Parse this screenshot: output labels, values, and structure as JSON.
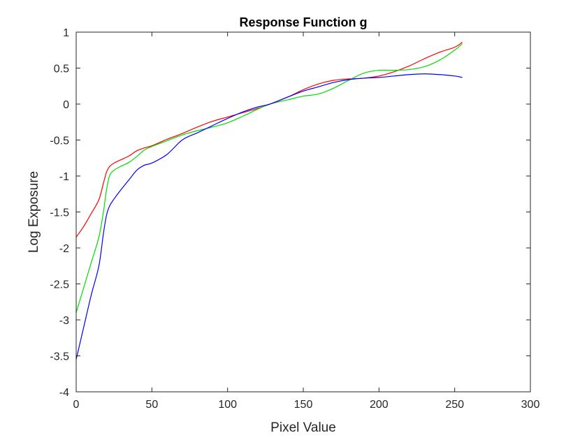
{
  "chart_data": {
    "type": "line",
    "title": "Response Function g",
    "xlabel": "Pixel Value",
    "ylabel": "Log Exposure",
    "xlim": [
      0,
      300
    ],
    "ylim": [
      -4,
      1
    ],
    "xticks": [
      0,
      50,
      100,
      150,
      200,
      250,
      300
    ],
    "yticks": [
      -4,
      -3.5,
      -3,
      -2.5,
      -2,
      -1.5,
      -1,
      -0.5,
      0,
      0.5,
      1
    ],
    "xtick_labels": [
      "0",
      "50",
      "100",
      "150",
      "200",
      "250",
      "300"
    ],
    "ytick_labels": [
      "-4",
      "-3.5",
      "-3",
      "-2.5",
      "-2",
      "-1.5",
      "-1",
      "-0.5",
      "0",
      "0.5",
      "1"
    ],
    "grid": false,
    "legend": "none",
    "series": [
      {
        "color": "#ff0000",
        "x": [
          0,
          5,
          10,
          15,
          18,
          20,
          22,
          25,
          30,
          35,
          40,
          45,
          50,
          60,
          70,
          80,
          90,
          100,
          110,
          120,
          128,
          140,
          150,
          160,
          170,
          180,
          190,
          200,
          210,
          220,
          230,
          240,
          250,
          255
        ],
        "y": [
          -1.85,
          -1.7,
          -1.52,
          -1.33,
          -1.1,
          -0.95,
          -0.87,
          -0.82,
          -0.77,
          -0.72,
          -0.65,
          -0.61,
          -0.58,
          -0.49,
          -0.41,
          -0.32,
          -0.24,
          -0.18,
          -0.12,
          -0.06,
          0.0,
          0.1,
          0.2,
          0.28,
          0.33,
          0.35,
          0.36,
          0.39,
          0.45,
          0.53,
          0.63,
          0.72,
          0.79,
          0.86
        ]
      },
      {
        "color": "#00dd00",
        "x": [
          0,
          5,
          10,
          15,
          18,
          20,
          22,
          25,
          30,
          35,
          40,
          45,
          50,
          60,
          70,
          80,
          90,
          100,
          110,
          120,
          128,
          140,
          150,
          160,
          170,
          180,
          190,
          200,
          210,
          220,
          230,
          240,
          250,
          255
        ],
        "y": [
          -2.9,
          -2.55,
          -2.2,
          -1.85,
          -1.5,
          -1.2,
          -1.0,
          -0.92,
          -0.86,
          -0.81,
          -0.73,
          -0.64,
          -0.59,
          -0.51,
          -0.43,
          -0.37,
          -0.32,
          -0.26,
          -0.17,
          -0.07,
          0.0,
          0.06,
          0.11,
          0.14,
          0.22,
          0.33,
          0.43,
          0.47,
          0.47,
          0.48,
          0.52,
          0.61,
          0.75,
          0.84
        ]
      },
      {
        "color": "#0000ff",
        "x": [
          0,
          5,
          10,
          15,
          18,
          20,
          22,
          25,
          30,
          35,
          40,
          45,
          50,
          60,
          70,
          80,
          90,
          100,
          110,
          120,
          128,
          140,
          150,
          160,
          170,
          180,
          190,
          200,
          210,
          220,
          230,
          240,
          250,
          255
        ],
        "y": [
          -3.55,
          -3.1,
          -2.65,
          -2.25,
          -1.8,
          -1.55,
          -1.42,
          -1.32,
          -1.18,
          -1.05,
          -0.92,
          -0.85,
          -0.82,
          -0.7,
          -0.5,
          -0.4,
          -0.3,
          -0.2,
          -0.11,
          -0.04,
          0.0,
          0.1,
          0.18,
          0.24,
          0.3,
          0.34,
          0.36,
          0.37,
          0.39,
          0.41,
          0.42,
          0.41,
          0.39,
          0.37
        ]
      }
    ]
  }
}
